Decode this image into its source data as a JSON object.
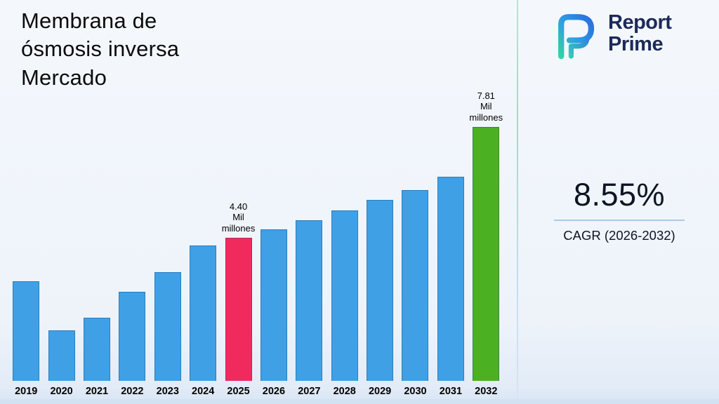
{
  "title": "Membrana de\nósmosis inversa\nMercado",
  "logo": {
    "line1": "Report",
    "line2": "Prime"
  },
  "cagr": {
    "value": "8.55%",
    "caption": "CAGR (2026-2032)"
  },
  "chart_data": {
    "type": "bar",
    "title": "Membrana de ósmosis inversa Mercado",
    "categories": [
      "2019",
      "2020",
      "2021",
      "2022",
      "2023",
      "2024",
      "2025",
      "2026",
      "2027",
      "2028",
      "2029",
      "2030",
      "2031",
      "2032"
    ],
    "values": [
      3.07,
      1.56,
      1.94,
      2.74,
      3.34,
      4.17,
      4.4,
      4.65,
      4.93,
      5.24,
      5.57,
      5.87,
      6.28,
      7.81
    ],
    "unit": "Mil millones",
    "ylim": [
      0,
      8.3
    ],
    "grid": false,
    "legend": "none",
    "colors": {
      "default": "#3fa0e6",
      "2025": "#f12a5e",
      "2032": "#4cb122"
    },
    "annotations": [
      {
        "year": "2025",
        "lines": [
          "4.40",
          "Mil",
          "millones"
        ]
      },
      {
        "year": "2032",
        "lines": [
          "7.81",
          "Mil",
          "millones"
        ]
      }
    ]
  }
}
